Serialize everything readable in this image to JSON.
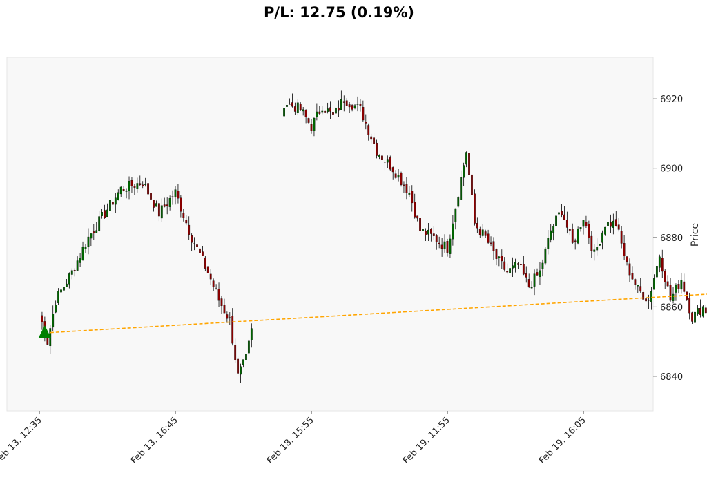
{
  "chart_data": {
    "type": "candlestick",
    "title": "P/L: 12.75 (0.19%)",
    "ylabel": "Price",
    "xlabel": "",
    "ylim": [
      6830,
      6932
    ],
    "y_ticks": [
      "6840",
      "6860",
      "6880",
      "6900",
      "6920"
    ],
    "x_tick_labels": [
      {
        "label": "Feb 13, 12:35",
        "index": 0
      },
      {
        "label": "Feb 13, 16:45",
        "index": 50
      },
      {
        "label": "Feb 18, 15:55",
        "index": 100
      },
      {
        "label": "Feb 19, 11:55",
        "index": 150
      },
      {
        "label": "Feb 19, 16:05",
        "index": 200
      }
    ],
    "grid": false,
    "colors": {
      "up": "#006400",
      "down": "#8b0000",
      "wick": "#000000",
      "plot_bg": "#f8f8f8",
      "trade_line": "#ffa500",
      "entry_marker": "#008000",
      "exit_marker": "#000000"
    },
    "close_anchors": [
      [
        0,
        6858
      ],
      [
        3,
        6850
      ],
      [
        6,
        6862
      ],
      [
        12,
        6870
      ],
      [
        18,
        6880
      ],
      [
        24,
        6887
      ],
      [
        30,
        6894
      ],
      [
        38,
        6896
      ],
      [
        44,
        6887
      ],
      [
        50,
        6893
      ],
      [
        56,
        6880
      ],
      [
        62,
        6870
      ],
      [
        66,
        6862
      ],
      [
        70,
        6856
      ],
      [
        73,
        6840
      ],
      [
        76,
        6845
      ],
      [
        78,
        6853
      ],
      [
        90,
        6919
      ],
      [
        96,
        6917
      ],
      [
        100,
        6912
      ],
      [
        104,
        6918
      ],
      [
        108,
        6915
      ],
      [
        112,
        6920
      ],
      [
        116,
        6918
      ],
      [
        118,
        6917
      ],
      [
        124,
        6905
      ],
      [
        130,
        6900
      ],
      [
        136,
        6893
      ],
      [
        140,
        6882
      ],
      [
        145,
        6880
      ],
      [
        150,
        6877
      ],
      [
        154,
        6893
      ],
      [
        157,
        6905
      ],
      [
        160,
        6884
      ],
      [
        164,
        6880
      ],
      [
        168,
        6874
      ],
      [
        172,
        6870
      ],
      [
        176,
        6872
      ],
      [
        180,
        6866
      ],
      [
        184,
        6870
      ],
      [
        188,
        6882
      ],
      [
        192,
        6888
      ],
      [
        196,
        6878
      ],
      [
        200,
        6886
      ],
      [
        204,
        6875
      ],
      [
        208,
        6884
      ],
      [
        212,
        6884
      ],
      [
        216,
        6872
      ],
      [
        220,
        6865
      ],
      [
        224,
        6862
      ],
      [
        228,
        6875
      ],
      [
        232,
        6862
      ],
      [
        236,
        6868
      ],
      [
        240,
        6857
      ],
      [
        244,
        6860
      ],
      [
        248,
        6856
      ],
      [
        252,
        6860
      ],
      [
        256,
        6867
      ],
      [
        260,
        6869
      ],
      [
        264,
        6872
      ],
      [
        266,
        6868
      ],
      [
        268,
        6860
      ],
      [
        270,
        6858
      ],
      [
        274,
        6860
      ],
      [
        278,
        6864
      ],
      [
        281,
        6865
      ]
    ],
    "gaps": [
      [
        79,
        89
      ]
    ],
    "seed": 7,
    "trade": {
      "entry": {
        "index": 2,
        "price": 6852.5
      },
      "exit": {
        "index": 280,
        "price": 6865.25
      },
      "profit": 12.75,
      "profit_pct": 0.19
    }
  }
}
